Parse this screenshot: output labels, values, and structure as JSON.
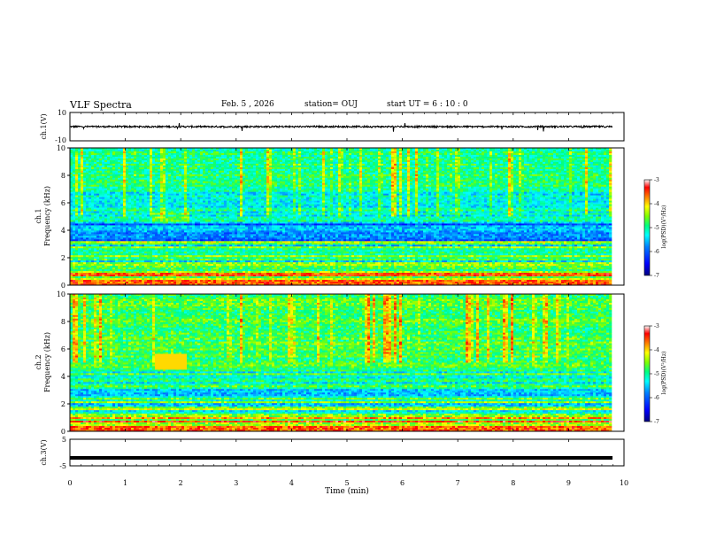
{
  "header": {
    "title": "VLF Spectra",
    "date": "Feb. 5 , 2026",
    "station": "station= OUJ",
    "start": "start  UT =  6 : 10 : 0"
  },
  "colors": {
    "colormap": [
      "#00007f",
      "#0000ff",
      "#0080ff",
      "#00ffff",
      "#00ff80",
      "#80ff00",
      "#ffff00",
      "#ff8000",
      "#ff0000",
      "#ffffff"
    ]
  },
  "chart_data": [
    {
      "type": "line",
      "name": "ch1-waveform",
      "ylabel": "ch.1(V)",
      "ylim": [
        -10,
        10
      ],
      "yticks": [
        "10",
        "-10"
      ],
      "xlim": [
        0,
        10
      ],
      "baseline": 0,
      "noise_amplitude": 1.2
    },
    {
      "type": "heatmap",
      "name": "ch1-spectrogram",
      "ylabel_top": "ch.1",
      "ylabel": "Frequency (kHz)",
      "ylim": [
        0,
        10
      ],
      "yticks": [
        "0",
        "2",
        "4",
        "6",
        "8",
        "10"
      ],
      "xlim": [
        0,
        10
      ],
      "colorbar": {
        "label": "log(PSD)(V²/Hz)",
        "ticks": [
          "-3",
          "-4",
          "-5",
          "-6",
          "-7"
        ],
        "range": [
          -7,
          -3
        ]
      }
    },
    {
      "type": "heatmap",
      "name": "ch2-spectrogram",
      "ylabel_top": "ch.2",
      "ylabel": "Frequency (kHz)",
      "ylim": [
        0,
        10
      ],
      "yticks": [
        "0",
        "2",
        "4",
        "6",
        "8",
        "10"
      ],
      "xlim": [
        0,
        10
      ],
      "colorbar": {
        "label": "log(PSD)(V²/Hz)",
        "ticks": [
          "-3",
          "-4",
          "-5",
          "-6",
          "-7"
        ],
        "range": [
          -7,
          -3
        ]
      }
    },
    {
      "type": "line",
      "name": "ch3-trace",
      "ylabel": "ch.3(V)",
      "ylim": [
        -5,
        5
      ],
      "yticks": [
        "5",
        "-5"
      ],
      "xlim": [
        0,
        10
      ],
      "constant_value": -2.0
    }
  ],
  "xaxis": {
    "label": "Time (min)",
    "ticks": [
      "0",
      "1",
      "2",
      "3",
      "4",
      "5",
      "6",
      "7",
      "8",
      "9",
      "10"
    ]
  }
}
